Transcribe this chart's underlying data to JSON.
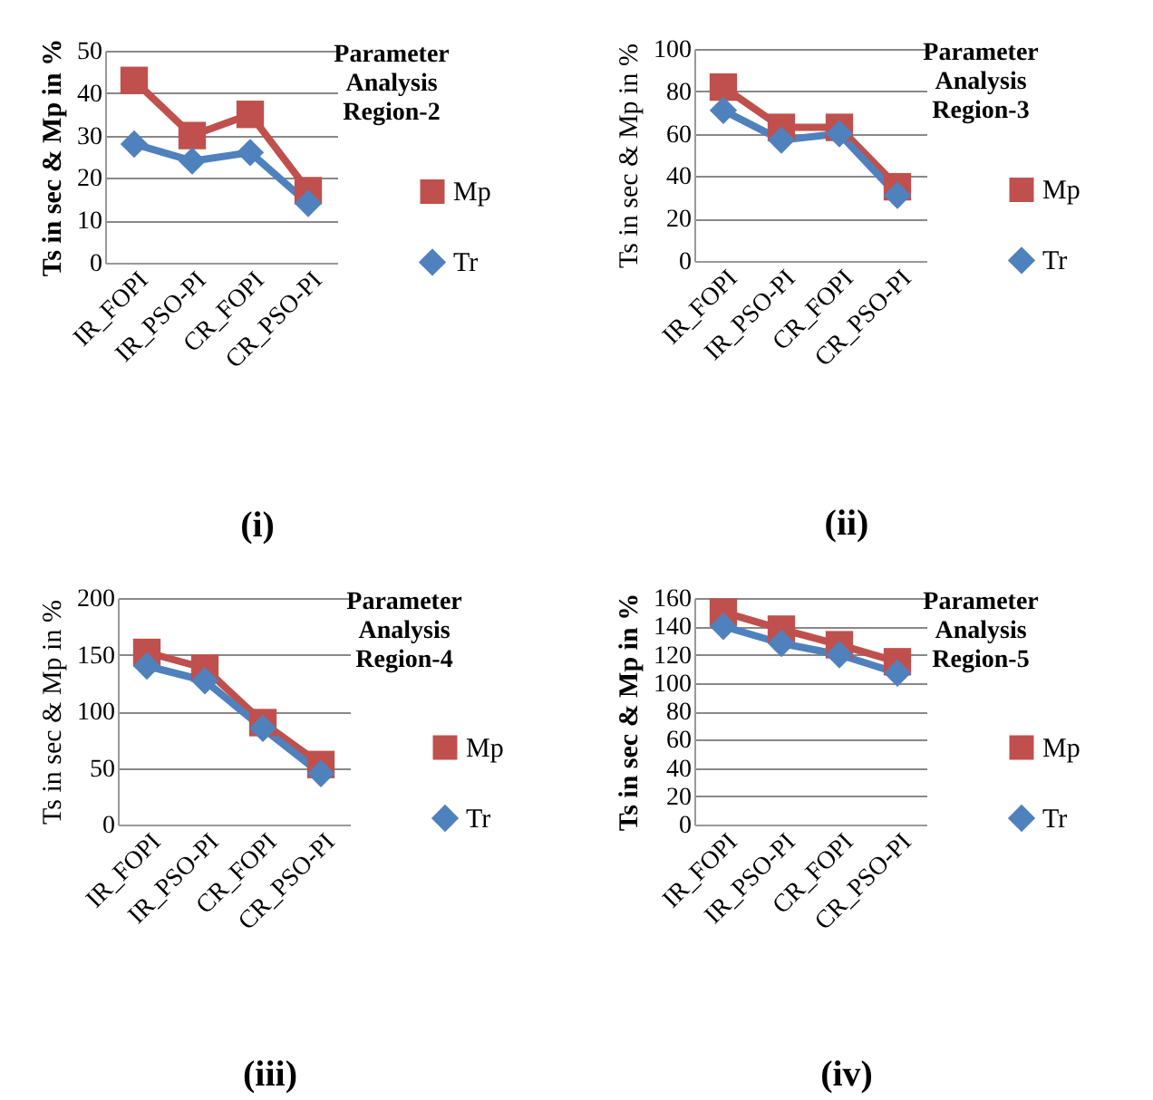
{
  "chart_data": [
    {
      "type": "line",
      "title": "Parameter Analysis Region-2",
      "ylabel": "Ts in sec & Mp in %",
      "categories": [
        "IR_FOPI",
        "IR_PSO-PI",
        "CR_FOPI",
        "CR_PSO-PI"
      ],
      "ylim": [
        0,
        50
      ],
      "yticks": [
        0,
        10,
        20,
        30,
        40,
        50
      ],
      "grid": "y",
      "legend": "right",
      "annotations": [
        "(i)"
      ],
      "series": [
        {
          "name": "Mp",
          "color": "#c0504d",
          "marker": "square",
          "values": [
            43,
            30,
            35,
            17
          ]
        },
        {
          "name": "Tr",
          "color": "#4f81bd",
          "marker": "diamond",
          "values": [
            28,
            24,
            26,
            14
          ]
        }
      ]
    },
    {
      "type": "line",
      "title": "Parameter Analysis Region-3",
      "ylabel": "Ts in sec & Mp in %",
      "categories": [
        "IR_FOPI",
        "IR_PSO-PI",
        "CR_FOPI",
        "CR_PSO-PI"
      ],
      "ylim": [
        0,
        100
      ],
      "yticks": [
        0,
        20,
        40,
        60,
        80,
        100
      ],
      "grid": "y",
      "legend": "right",
      "annotations": [
        "(ii)"
      ],
      "series": [
        {
          "name": "Mp",
          "color": "#c0504d",
          "marker": "square",
          "values": [
            82,
            63,
            63,
            35
          ]
        },
        {
          "name": "Tr",
          "color": "#4f81bd",
          "marker": "diamond",
          "values": [
            71,
            57,
            60,
            31
          ]
        }
      ]
    },
    {
      "type": "line",
      "title": "Parameter Analysis Region-4",
      "ylabel": "Ts in sec & Mp in %",
      "categories": [
        "IR_FOPI",
        "IR_PSO-PI",
        "CR_FOPI",
        "CR_PSO-PI"
      ],
      "ylim": [
        0,
        200
      ],
      "yticks": [
        0,
        50,
        100,
        150,
        200
      ],
      "grid": "y",
      "legend": "right",
      "annotations": [
        "(iii)"
      ],
      "series": [
        {
          "name": "Mp",
          "color": "#c0504d",
          "marker": "square",
          "values": [
            152,
            138,
            90,
            53
          ]
        },
        {
          "name": "Tr",
          "color": "#4f81bd",
          "marker": "diamond",
          "values": [
            140,
            127,
            85,
            45
          ]
        }
      ]
    },
    {
      "type": "line",
      "title": "Parameter Analysis Region-5",
      "ylabel": "Ts in sec & Mp in %",
      "categories": [
        "IR_FOPI",
        "IR_PSO-PI",
        "CR_FOPI",
        "CR_PSO-PI"
      ],
      "ylim": [
        0,
        160
      ],
      "yticks": [
        0,
        20,
        40,
        60,
        80,
        100,
        120,
        140,
        160
      ],
      "grid": "y",
      "legend": "right",
      "annotations": [
        "(iv)"
      ],
      "series": [
        {
          "name": "Mp",
          "color": "#c0504d",
          "marker": "square",
          "values": [
            150,
            138,
            127,
            115
          ]
        },
        {
          "name": "Tr",
          "color": "#4f81bd",
          "marker": "diamond",
          "values": [
            140,
            128,
            120,
            107
          ]
        }
      ]
    }
  ]
}
